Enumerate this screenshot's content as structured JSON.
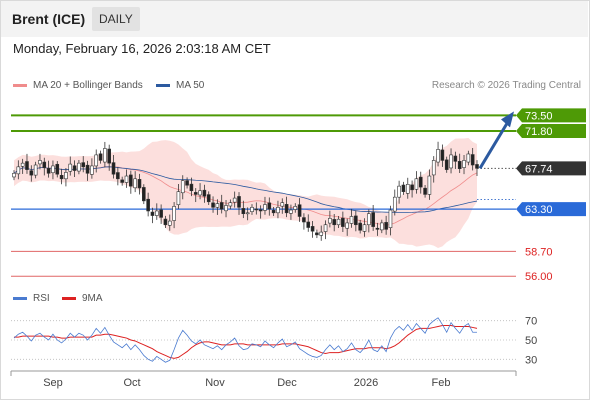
{
  "header": {
    "title": "Brent (ICE)",
    "period": "DAILY"
  },
  "timestamp": "Monday, February 16, 2026 2:03:18 AM CET",
  "credit": "Research © 2026 Trading Central",
  "legend_main": [
    {
      "label": "MA 20 + Bollinger Bands",
      "color": "#f08c8c"
    },
    {
      "label": "MA 50",
      "color": "#2c5aa0"
    }
  ],
  "legend_rsi": [
    {
      "label": "RSI",
      "color": "#4a7bd0"
    },
    {
      "label": "9MA",
      "color": "#dd2222"
    }
  ],
  "chart_data": [
    {
      "type": "candlestick",
      "ylim": [
        54.5,
        75.5
      ],
      "x_ticks": [
        "Sep",
        "Oct",
        "Nov",
        "Dec",
        "2026",
        "Feb"
      ],
      "close_series": [
        67.2,
        67.9,
        68.3,
        67.6,
        67.0,
        68.1,
        68.6,
        67.8,
        67.2,
        68.0,
        67.1,
        66.6,
        67.3,
        68.2,
        67.5,
        68.3,
        67.9,
        67.2,
        68.0,
        69.2,
        68.6,
        69.9,
        68.3,
        67.1,
        66.6,
        66.2,
        66.9,
        65.8,
        66.6,
        65.6,
        64.2,
        63.1,
        62.6,
        63.1,
        62.4,
        61.6,
        62.0,
        63.6,
        65.2,
        66.4,
        65.9,
        65.3,
        64.9,
        65.3,
        64.7,
        64.1,
        63.5,
        63.9,
        63.3,
        63.7,
        64.0,
        64.5,
        63.5,
        62.8,
        62.9,
        63.5,
        63.3,
        63.1,
        63.8,
        63.3,
        62.9,
        63.5,
        64.0,
        62.9,
        63.2,
        63.6,
        62.5,
        61.9,
        61.3,
        60.9,
        60.5,
        60.8,
        61.6,
        62.3,
        61.6,
        62.2,
        61.4,
        61.8,
        62.5,
        61.6,
        61.0,
        61.6,
        62.8,
        61.4,
        61.1,
        61.8,
        61.1,
        63.2,
        64.6,
        65.8,
        65.2,
        66.0,
        65.4,
        66.6,
        65.7,
        64.9,
        66.9,
        68.6,
        69.8,
        68.6,
        67.6,
        69.2,
        68.5,
        67.7,
        68.6,
        69.3,
        68.1,
        67.74
      ],
      "horizontal_levels": [
        {
          "label": "73.50",
          "value": 73.5,
          "color": "#4e9a06",
          "filled": true
        },
        {
          "label": "71.80",
          "value": 71.8,
          "color": "#4e9a06",
          "filled": true
        },
        {
          "label": "67.74",
          "value": 67.74,
          "color": "#333333",
          "filled": true
        },
        {
          "label": "63.30",
          "value": 63.3,
          "color": "#2a6ad8",
          "filled": true
        },
        {
          "label": "58.70",
          "value": 58.7,
          "color": "#e06666",
          "filled": false
        },
        {
          "label": "56.00",
          "value": 56.0,
          "color": "#e06666",
          "filled": false
        }
      ],
      "projection": {
        "from": 67.74,
        "to": 73.5
      }
    },
    {
      "type": "line",
      "ylim": [
        20,
        80
      ],
      "y_ticks": [
        "70",
        "50",
        "30"
      ],
      "series": [
        {
          "name": "RSI",
          "values": [
            52,
            56,
            58,
            54,
            49,
            55,
            57,
            53,
            50,
            56,
            50,
            47,
            51,
            57,
            53,
            57,
            55,
            50,
            55,
            62,
            57,
            63,
            55,
            48,
            45,
            42,
            46,
            40,
            45,
            40,
            34,
            30,
            28,
            33,
            30,
            27,
            29,
            40,
            52,
            60,
            55,
            49,
            46,
            50,
            45,
            43,
            41,
            44,
            40,
            45,
            48,
            52,
            44,
            40,
            41,
            46,
            45,
            43,
            49,
            45,
            42,
            47,
            51,
            43,
            45,
            48,
            41,
            38,
            35,
            33,
            32,
            34,
            40,
            45,
            40,
            44,
            38,
            41,
            47,
            40,
            37,
            42,
            50,
            40,
            38,
            44,
            38,
            52,
            60,
            64,
            60,
            66,
            60,
            67,
            62,
            57,
            66,
            70,
            73,
            66,
            58,
            68,
            62,
            57,
            64,
            67,
            58,
            58
          ]
        },
        {
          "name": "9MA",
          "values": [
            53,
            53,
            54,
            54,
            54,
            54,
            54,
            54,
            54,
            53,
            53,
            52,
            52,
            53,
            53,
            53,
            53,
            53,
            53,
            55,
            55,
            56,
            56,
            55,
            54,
            53,
            52,
            50,
            49,
            47,
            45,
            43,
            41,
            38,
            36,
            34,
            32,
            31,
            32,
            35,
            38,
            42,
            45,
            47,
            48,
            48,
            47,
            46,
            45,
            45,
            45,
            46,
            46,
            46,
            45,
            45,
            45,
            45,
            45,
            45,
            45,
            45,
            46,
            46,
            46,
            46,
            45,
            44,
            43,
            41,
            39,
            37,
            36,
            37,
            37,
            37,
            38,
            39,
            40,
            41,
            41,
            41,
            42,
            42,
            42,
            42,
            41,
            42,
            44,
            47,
            51,
            55,
            58,
            61,
            62,
            62,
            62,
            63,
            64,
            65,
            65,
            65,
            64,
            64,
            64,
            64,
            63,
            62
          ]
        }
      ]
    }
  ]
}
